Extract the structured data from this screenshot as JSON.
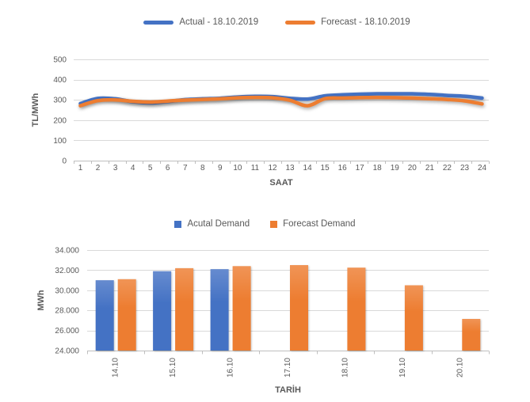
{
  "colors": {
    "actual": "#4472C4",
    "forecast": "#ED7D31",
    "grid": "#D9D9D9",
    "axis": "#BFBFBF",
    "text": "#595959",
    "background": "#FFFFFF"
  },
  "chart_data": [
    {
      "id": "price-line",
      "type": "line",
      "title": "",
      "legend_position": "top",
      "grid": true,
      "xlabel": "SAAT",
      "ylabel": "TL/MWh",
      "ylim": [
        0,
        500
      ],
      "yticks": [
        0,
        100,
        200,
        300,
        400,
        500
      ],
      "ytick_labels": [
        "0",
        "100",
        "200",
        "300",
        "400",
        "500"
      ],
      "x": [
        1,
        2,
        3,
        4,
        5,
        6,
        7,
        8,
        9,
        10,
        11,
        12,
        13,
        14,
        15,
        16,
        17,
        18,
        19,
        20,
        21,
        22,
        23,
        24
      ],
      "series": [
        {
          "name": "Actual - 18.10.2019",
          "color": "#4472C4",
          "values": [
            282,
            307,
            305,
            291,
            285,
            292,
            301,
            305,
            308,
            314,
            317,
            316,
            308,
            304,
            320,
            325,
            328,
            330,
            330,
            330,
            327,
            322,
            318,
            309
          ]
        },
        {
          "name": "Forecast - 18.10.2019",
          "color": "#ED7D31",
          "values": [
            271,
            296,
            300,
            293,
            289,
            294,
            299,
            302,
            305,
            310,
            312,
            310,
            298,
            271,
            306,
            309,
            311,
            312,
            311,
            309,
            306,
            302,
            295,
            280
          ]
        }
      ]
    },
    {
      "id": "demand-bar",
      "type": "bar",
      "title": "",
      "legend_position": "top",
      "grid": true,
      "xlabel": "TARİH",
      "ylabel": "MWh",
      "ylim": [
        24000,
        34000
      ],
      "yticks": [
        24000,
        26000,
        28000,
        30000,
        32000,
        34000
      ],
      "ytick_labels": [
        "24.000",
        "26.000",
        "28.000",
        "30.000",
        "32.000",
        "34.000"
      ],
      "categories": [
        "14.10",
        "15.10",
        "16.10",
        "17.10",
        "18.10",
        "19.10",
        "20.10"
      ],
      "series": [
        {
          "name": "Acutal Demand",
          "color": "#4472C4",
          "values": [
            31000,
            31900,
            32100,
            null,
            null,
            null,
            null
          ]
        },
        {
          "name": "Forecast Demand",
          "color": "#ED7D31",
          "values": [
            31100,
            32200,
            32400,
            32500,
            32250,
            30500,
            27150
          ]
        }
      ]
    }
  ]
}
